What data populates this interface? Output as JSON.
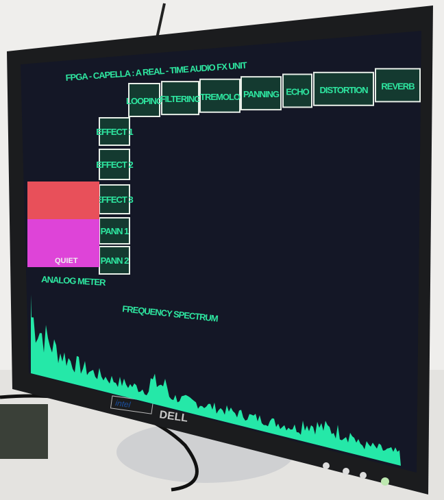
{
  "screen": {
    "title": "FPGA - CAPELLA : A REAL - TIME  AUDIO FX UNIT",
    "tabs": [
      "LOOPING",
      "FILTERING",
      "TREMOLO",
      "PANNING",
      "ECHO",
      "DISTORTION",
      "REVERB"
    ],
    "side_buttons": [
      "EFFECT 1",
      "EFFECT 2",
      "EFFECT 3",
      "PANN 1",
      "PANN 2"
    ],
    "meter": {
      "level": "QUIET",
      "label": "ANALOG METER"
    },
    "spectrum_label": "FREQUENCY SPECTRUM"
  },
  "monitor": {
    "brand": "DELL",
    "sticker": "intel"
  }
}
